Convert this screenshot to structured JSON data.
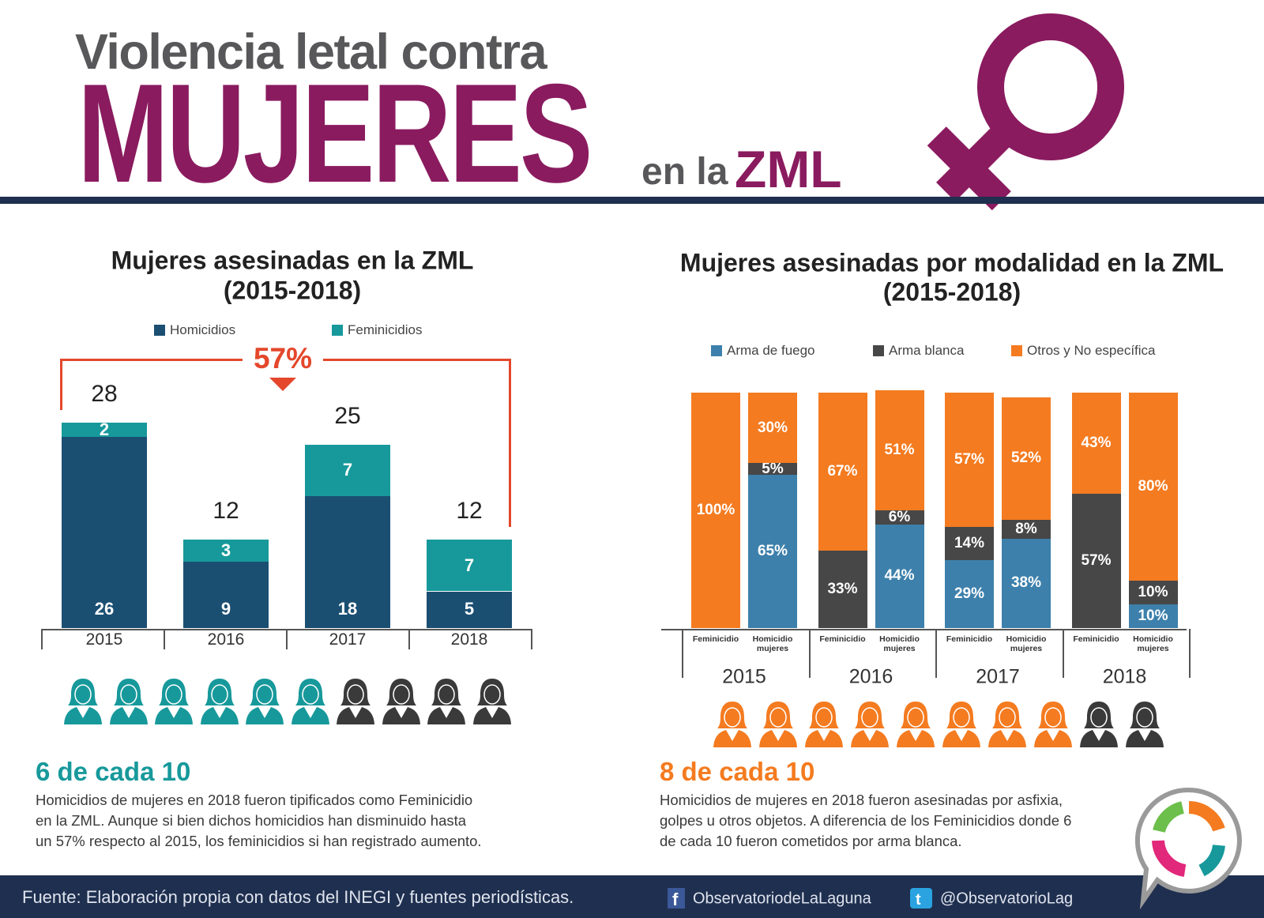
{
  "header": {
    "line1": "Violencia letal contra",
    "line2": "MUJERES",
    "line3a": "en la",
    "line3b": "ZML"
  },
  "chart_data": [
    {
      "type": "stacked_bar",
      "title": "Mujeres asesinadas en la ZML",
      "subtitle": "(2015-2018)",
      "categories": [
        "2015",
        "2016",
        "2017",
        "2018"
      ],
      "series": [
        {
          "name": "Homicidios",
          "color": "#1b4f72",
          "values": [
            26,
            9,
            18,
            5
          ]
        },
        {
          "name": "Feminicidios",
          "color": "#17999b",
          "values": [
            2,
            3,
            7,
            7
          ]
        }
      ],
      "totals": [
        28,
        12,
        25,
        12
      ],
      "ylim": [
        0,
        30
      ],
      "annotation": "57%",
      "annotation_color": "#e4472b",
      "pictogram": {
        "filled": 6,
        "total": 10,
        "color": "#17999b",
        "other_color": "#3a3a3a"
      }
    },
    {
      "type": "stacked_percent_bar",
      "title": "Mujeres asesinadas por modalidad en la ZML",
      "subtitle": "(2015-2018)",
      "groups": [
        "2015",
        "2016",
        "2017",
        "2018"
      ],
      "categories": [
        "Feminicidio",
        "Homicidio mujeres",
        "Feminicidio",
        "Homicidio mujeres",
        "Feminicidio",
        "Homicidio mujeres",
        "Feminicidio",
        "Homicidio mujeres"
      ],
      "series": [
        {
          "name": "Arma de fuego",
          "color": "#3d80ab",
          "values": [
            null,
            65,
            null,
            44,
            29,
            38,
            null,
            10
          ],
          "value_labels": [
            null,
            "65%",
            null,
            "44%",
            "29%",
            "38%",
            null,
            "10%"
          ]
        },
        {
          "name": "Arma blanca",
          "color": "#474747",
          "values": [
            null,
            5,
            33,
            6,
            14,
            8,
            57,
            10
          ],
          "value_labels": [
            null,
            "5%",
            "33%",
            "6%",
            "14%",
            "8%",
            "57%",
            "10%"
          ]
        },
        {
          "name": "Otros y No específica",
          "color": "#f47b20",
          "values": [
            100,
            30,
            67,
            51,
            57,
            52,
            43,
            80
          ],
          "value_labels": [
            "100%",
            "30%",
            "67%",
            "51%",
            "57%",
            "52%",
            "43%",
            "80%"
          ]
        }
      ],
      "ylim": [
        0,
        100
      ],
      "pictogram": {
        "filled": 8,
        "total": 10,
        "color": "#f47b20",
        "other_color": "#3a3a3a"
      }
    }
  ],
  "summaries": [
    {
      "headline": "6 de cada 10",
      "color": "#17999b",
      "lines": [
        "Homicidios de mujeres en 2018 fueron tipificados como Feminicidio",
        "en la ZML. Aunque si bien dichos homicidios han disminuido hasta",
        "un 57% respecto al 2015, los feminicidios si han registrado aumento."
      ]
    },
    {
      "headline": "8 de cada 10",
      "color": "#f47b20",
      "lines": [
        "Homicidios de mujeres en 2018 fueron asesinadas por asfixia,",
        "golpes u otros objetos. A diferencia de los Feminicidios donde 6",
        "de cada 10 fueron cometidos por arma blanca."
      ]
    }
  ],
  "footer": {
    "source": "Fuente: Elaboración propia con datos del INEGI y fuentes periodísticas.",
    "facebook": "ObservatoriodeLaLaguna",
    "twitter": "@ObservatorioLag"
  }
}
